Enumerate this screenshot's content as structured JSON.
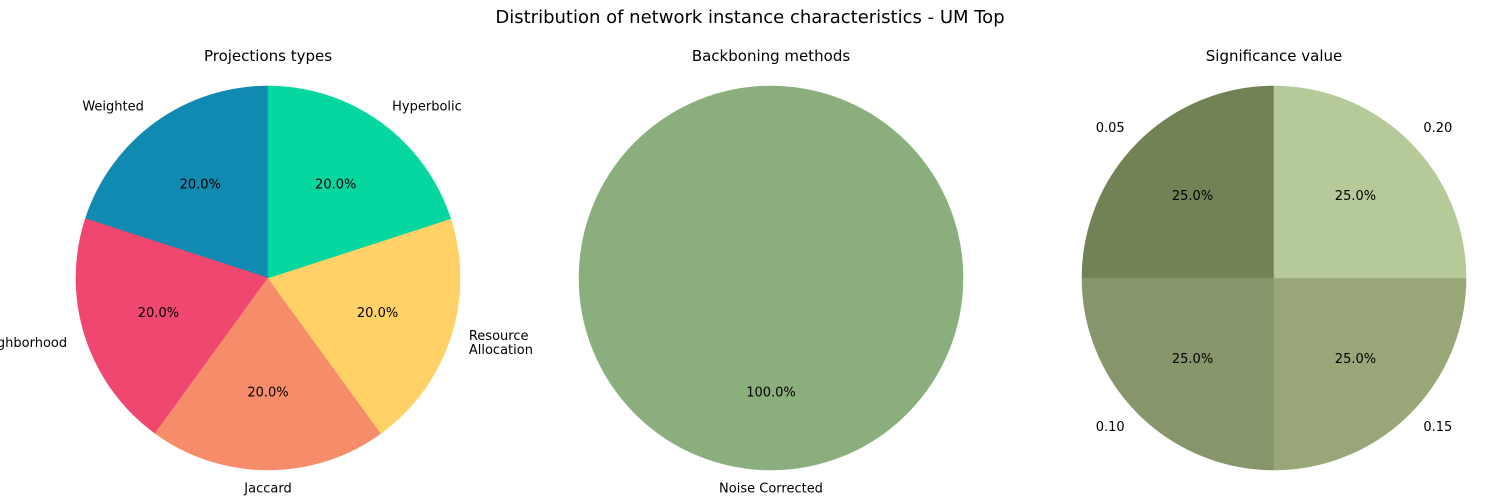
{
  "figure": {
    "title": "Distribution of network instance characteristics - UM Top"
  },
  "chart_data": [
    {
      "type": "pie",
      "title": "Projections types",
      "start_angle_deg": 90,
      "direction": "counterclockwise",
      "labels": [
        "Weighted",
        "Neighborhood",
        "Jaccard",
        "Resource\nAllocation",
        "Hyperbolic"
      ],
      "values": [
        20.0,
        20.0,
        20.0,
        20.0,
        20.0
      ],
      "value_labels": [
        "20.0%",
        "20.0%",
        "20.0%",
        "20.0%",
        "20.0%"
      ],
      "colors": [
        "#118AB2",
        "#EF476F",
        "#F78C6B",
        "#FFD166",
        "#06D6A0"
      ]
    },
    {
      "type": "pie",
      "title": "Backboning methods",
      "start_angle_deg": 90,
      "direction": "counterclockwise",
      "labels": [
        "Noise Corrected"
      ],
      "values": [
        100.0
      ],
      "value_labels": [
        "100.0%"
      ],
      "colors": [
        "#8BAF7C"
      ]
    },
    {
      "type": "pie",
      "title": "Significance value",
      "start_angle_deg": 90,
      "direction": "counterclockwise",
      "labels": [
        "0.05",
        "0.10",
        "0.15",
        "0.20"
      ],
      "values": [
        25.0,
        25.0,
        25.0,
        25.0
      ],
      "value_labels": [
        "25.0%",
        "25.0%",
        "25.0%",
        "25.0%"
      ],
      "colors": [
        "#718254",
        "#87956A",
        "#99A678",
        "#B6C998"
      ]
    }
  ]
}
